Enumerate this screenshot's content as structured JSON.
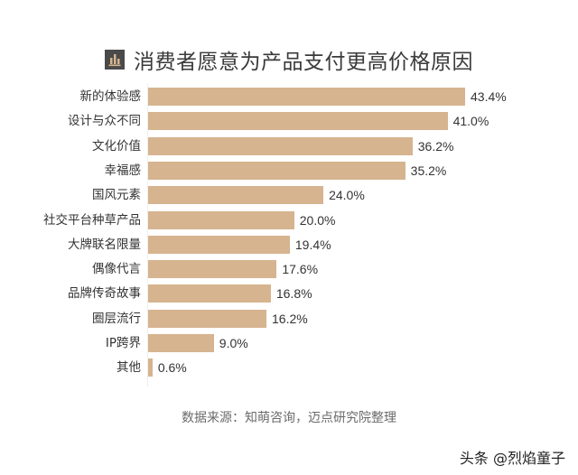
{
  "title": "消费者愿意为产品支付更高价格原因",
  "title_icon": "bar-chart-icon",
  "source": "数据来源：知萌咨询，迈点研究院整理",
  "watermark": "头条 @烈焰童子",
  "colors": {
    "bar": "#d6b48f",
    "title_icon_bg": "#4a4a4a",
    "title_icon_fg": "#d6b48f",
    "text": "#333333",
    "source_text": "#6a6a6a"
  },
  "chart_data": {
    "type": "bar",
    "orientation": "horizontal",
    "title": "消费者愿意为产品支付更高价格原因",
    "xlabel": "",
    "ylabel": "",
    "categories": [
      "新的体验感",
      "设计与众不同",
      "文化价值",
      "幸福感",
      "国风元素",
      "社交平台种草产品",
      "大牌联名限量",
      "偶像代言",
      "品牌传奇故事",
      "圈层流行",
      "IP跨界",
      "其他"
    ],
    "values": [
      43.4,
      41.0,
      36.2,
      35.2,
      24.0,
      20.0,
      19.4,
      17.6,
      16.8,
      16.2,
      9.0,
      0.6
    ],
    "value_labels": [
      "43.4%",
      "41.0%",
      "36.2%",
      "35.2%",
      "24.0%",
      "20.0%",
      "19.4%",
      "17.6%",
      "16.8%",
      "16.2%",
      "9.0%",
      "0.6%"
    ],
    "unit": "%",
    "xlim": [
      0,
      45
    ],
    "grid": false,
    "legend": null,
    "annotation": "数据来源：知萌咨询，迈点研究院整理"
  }
}
